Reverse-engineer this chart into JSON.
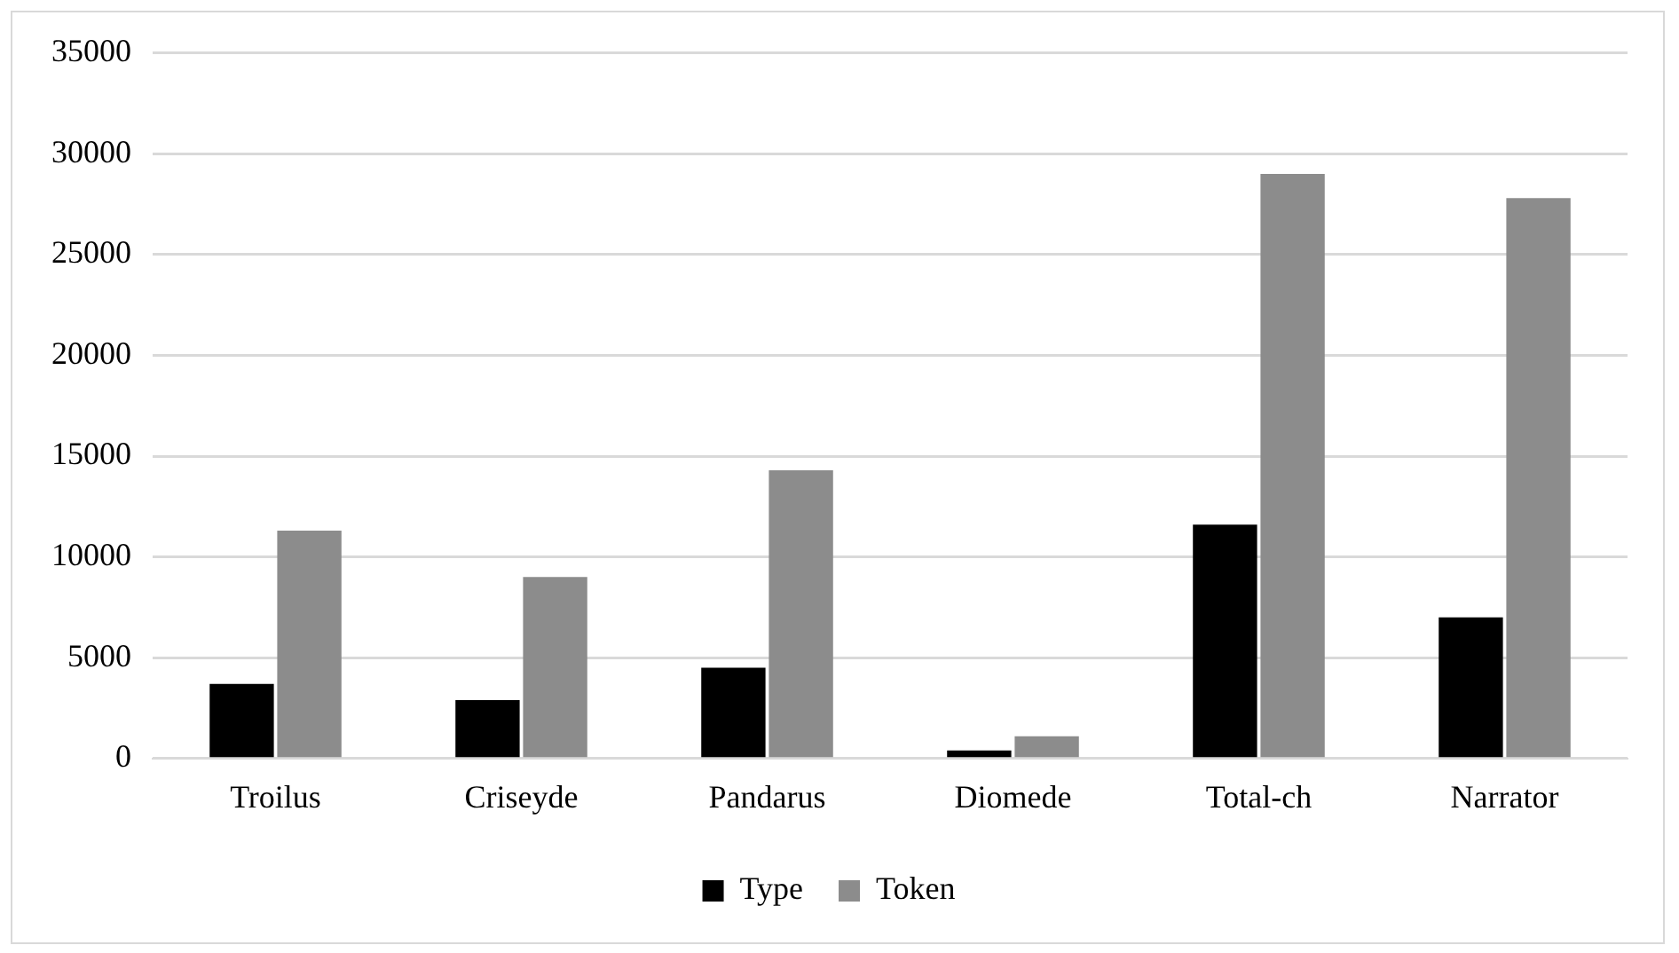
{
  "chart_data": {
    "type": "bar",
    "categories": [
      "Troilus",
      "Criseyde",
      "Pandarus",
      "Diomede",
      "Total-ch",
      "Narrator"
    ],
    "series": [
      {
        "name": "Type",
        "color": "#000000",
        "values": [
          3700,
          2900,
          4500,
          400,
          11600,
          7000
        ]
      },
      {
        "name": "Token",
        "color": "#8c8c8c",
        "values": [
          11300,
          9000,
          14300,
          1100,
          29000,
          27800
        ]
      }
    ],
    "ylim": [
      0,
      35000
    ],
    "yticks": [
      0,
      5000,
      10000,
      15000,
      20000,
      25000,
      30000,
      35000
    ],
    "grid": "y",
    "legend": "bottom"
  }
}
